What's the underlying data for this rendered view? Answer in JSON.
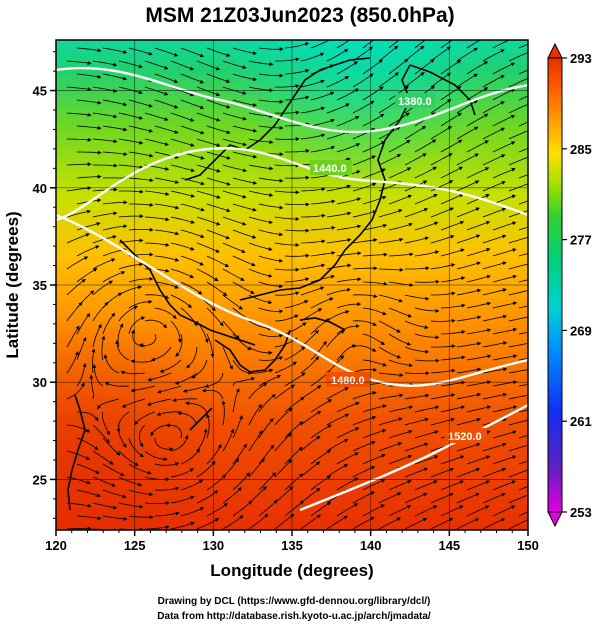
{
  "title": "MSM 21Z03Jun2023 (850.0hPa)",
  "x_axis": {
    "label": "Longitude (degrees)",
    "range": [
      120,
      150
    ],
    "ticks": [
      "120",
      "125",
      "130",
      "135",
      "140",
      "145",
      "150"
    ]
  },
  "y_axis": {
    "label": "Latitude  (degrees)",
    "range": [
      22.4,
      47.6
    ],
    "ticks": [
      "25",
      "30",
      "35",
      "40",
      "45"
    ]
  },
  "colorbar": {
    "range": [
      253,
      293
    ],
    "ticks": [
      "293",
      "285",
      "277",
      "269",
      "261",
      "253"
    ],
    "colors": [
      "#e000e0",
      "#4020c0",
      "#0050ff",
      "#00c0e0",
      "#00d080",
      "#40d020",
      "#c0e000",
      "#ffd000",
      "#ff9000",
      "#ff5000",
      "#e83000"
    ]
  },
  "contours": [
    {
      "label": "1380.0"
    },
    {
      "label": "1440.0"
    },
    {
      "label": "1480.0"
    },
    {
      "label": "1520.0"
    }
  ],
  "credits": [
    "Drawing by DCL (https://www.gfd-dennou.org/library/dcl/)",
    "Data from http://database.rish.kyoto-u.ac.jp/arch/jmadata/"
  ]
}
